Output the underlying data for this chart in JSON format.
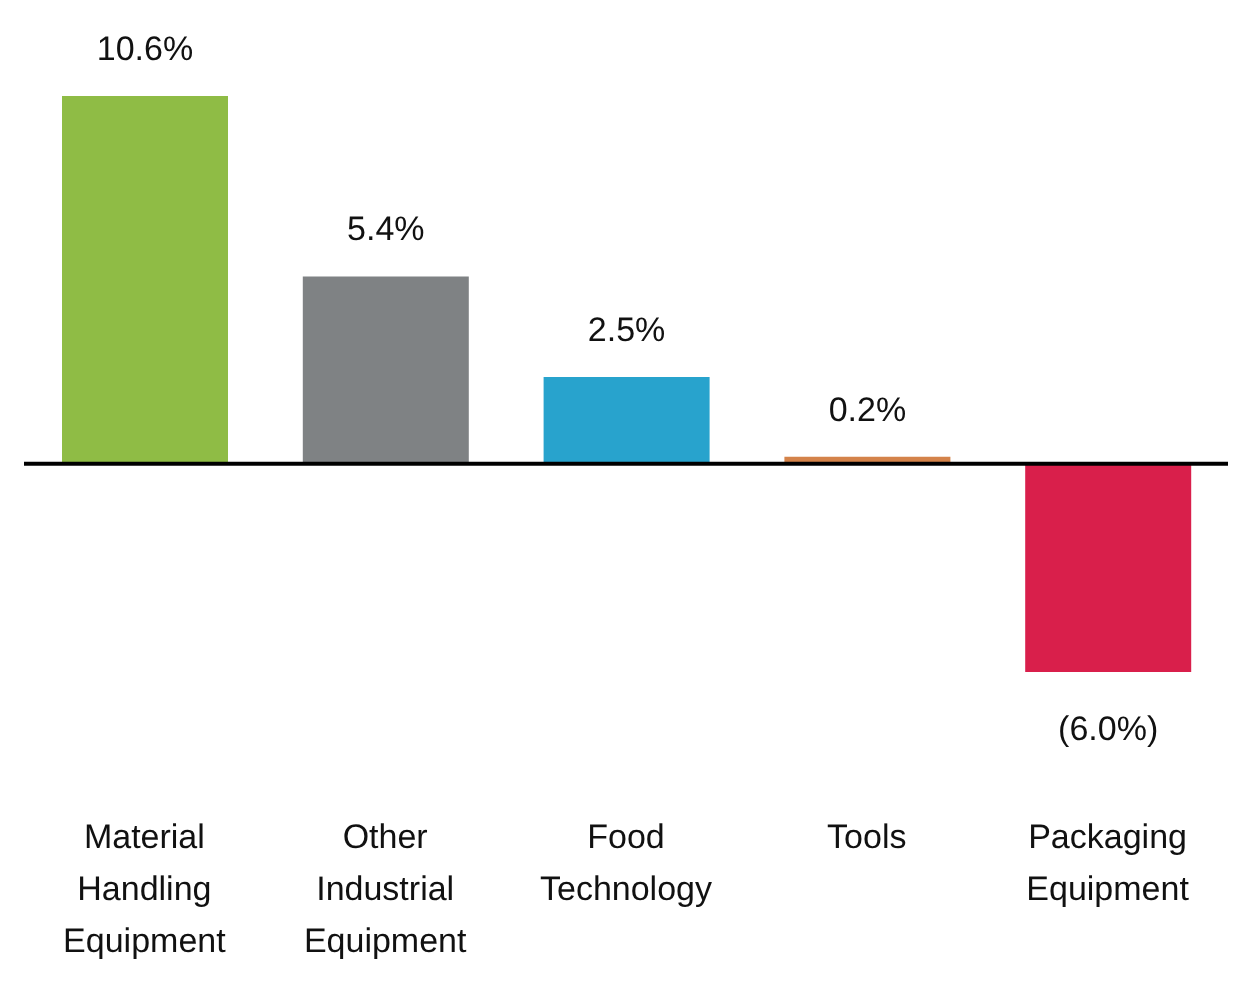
{
  "chart_data": {
    "type": "bar",
    "categories": [
      "Material Handling Equipment",
      "Other Industrial Equipment",
      "Food Technology",
      "Tools",
      "Packaging Equipment"
    ],
    "values": [
      10.6,
      5.4,
      2.5,
      0.2,
      -6.0
    ],
    "colors": [
      "#8fbc45",
      "#7f8284",
      "#28a3cd",
      "#d4834a",
      "#d91f4b"
    ],
    "value_labels": [
      "10.6%",
      "5.4%",
      "2.5%",
      "0.2%",
      "(6.0%)"
    ],
    "grid": false,
    "legend": false
  }
}
